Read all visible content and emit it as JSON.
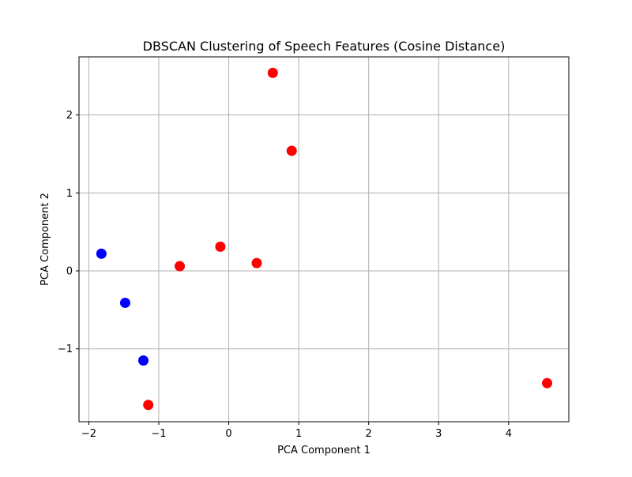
{
  "chart_data": {
    "type": "scatter",
    "title": "DBSCAN Clustering of Speech Features (Cosine Distance)",
    "xlabel": "PCA Component 1",
    "ylabel": "PCA Component 2",
    "xlim": [
      -2.14,
      4.86
    ],
    "ylim": [
      -1.935,
      2.745
    ],
    "xticks": [
      -2,
      -1,
      0,
      1,
      2,
      3,
      4
    ],
    "xtick_labels": [
      "−2",
      "−1",
      "0",
      "1",
      "2",
      "3",
      "4"
    ],
    "yticks": [
      -1,
      0,
      1,
      2
    ],
    "ytick_labels": [
      "−1",
      "0",
      "1",
      "2"
    ],
    "grid": true,
    "series": [
      {
        "color": "#0000ff",
        "x": [
          -1.82,
          -1.48,
          -1.22
        ],
        "y": [
          0.22,
          -0.41,
          -1.15
        ]
      },
      {
        "color": "#ff0000",
        "x": [
          0.63,
          0.9,
          -0.12,
          0.4,
          -0.7,
          -1.15,
          4.55
        ],
        "y": [
          2.54,
          1.54,
          0.31,
          0.1,
          0.06,
          -1.72,
          -1.44
        ]
      }
    ]
  }
}
